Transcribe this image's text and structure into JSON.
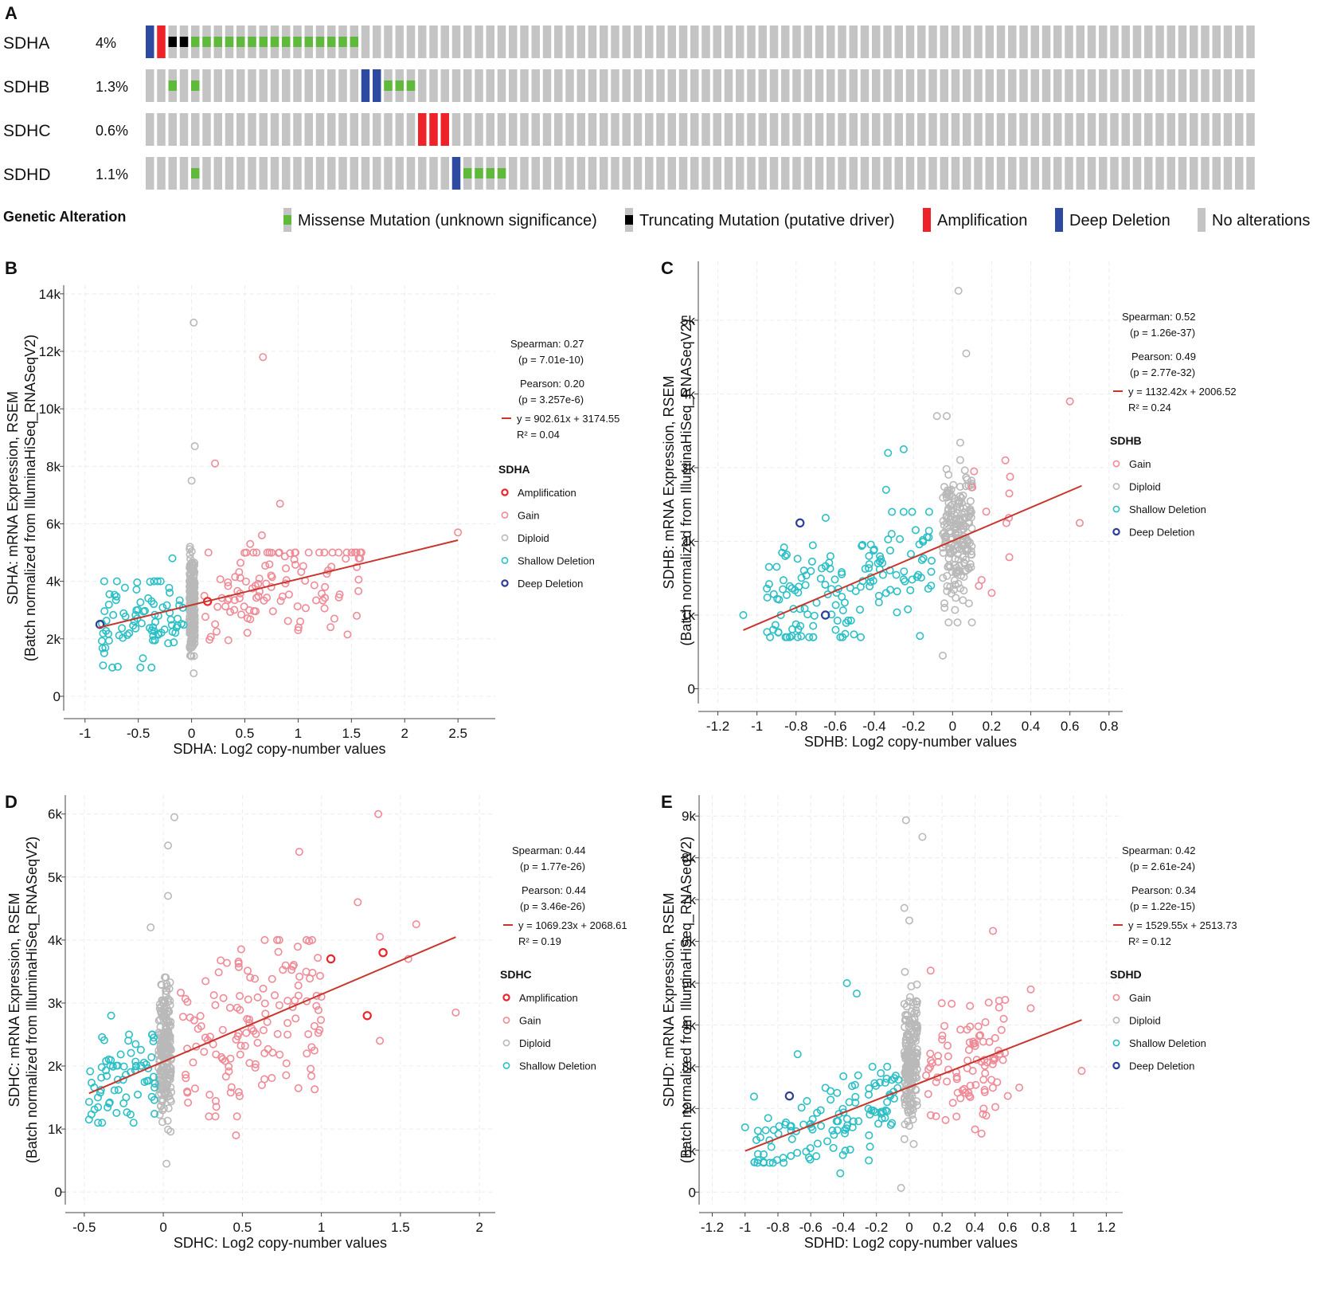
{
  "panel_a": {
    "label": "A",
    "legend_title": "Genetic Alteration",
    "n_samples": 98,
    "genes": [
      {
        "name": "SDHA",
        "pct": "4%",
        "alterations": [
          {
            "i": 0,
            "t": "deep"
          },
          {
            "i": 1,
            "t": "amp"
          },
          {
            "i": 2,
            "t": "trunc"
          },
          {
            "i": 3,
            "t": "trunc"
          },
          {
            "i": 4,
            "t": "mis"
          },
          {
            "i": 5,
            "t": "mis"
          },
          {
            "i": 6,
            "t": "mis"
          },
          {
            "i": 7,
            "t": "mis"
          },
          {
            "i": 8,
            "t": "mis"
          },
          {
            "i": 9,
            "t": "mis"
          },
          {
            "i": 10,
            "t": "mis"
          },
          {
            "i": 11,
            "t": "mis"
          },
          {
            "i": 12,
            "t": "mis"
          },
          {
            "i": 13,
            "t": "mis"
          },
          {
            "i": 14,
            "t": "mis"
          },
          {
            "i": 15,
            "t": "mis"
          },
          {
            "i": 16,
            "t": "mis"
          },
          {
            "i": 17,
            "t": "mis"
          },
          {
            "i": 18,
            "t": "mis"
          }
        ]
      },
      {
        "name": "SDHB",
        "pct": "1.3%",
        "alterations": [
          {
            "i": 2,
            "t": "mis"
          },
          {
            "i": 4,
            "t": "mis"
          },
          {
            "i": 19,
            "t": "deep"
          },
          {
            "i": 20,
            "t": "deep"
          },
          {
            "i": 21,
            "t": "mis"
          },
          {
            "i": 22,
            "t": "mis"
          },
          {
            "i": 23,
            "t": "mis"
          }
        ]
      },
      {
        "name": "SDHC",
        "pct": "0.6%",
        "alterations": [
          {
            "i": 24,
            "t": "amp"
          },
          {
            "i": 25,
            "t": "amp"
          },
          {
            "i": 26,
            "t": "amp"
          }
        ]
      },
      {
        "name": "SDHD",
        "pct": "1.1%",
        "alterations": [
          {
            "i": 4,
            "t": "mis"
          },
          {
            "i": 27,
            "t": "deep"
          },
          {
            "i": 28,
            "t": "mis"
          },
          {
            "i": 29,
            "t": "mis"
          },
          {
            "i": 30,
            "t": "mis"
          },
          {
            "i": 31,
            "t": "mis"
          }
        ]
      }
    ],
    "legend": [
      {
        "key": "mis",
        "label": "Missense Mutation (unknown significance)"
      },
      {
        "key": "trunc",
        "label": "Truncating Mutation (putative driver)"
      },
      {
        "key": "amp",
        "label": "Amplification"
      },
      {
        "key": "deep",
        "label": "Deep Deletion"
      },
      {
        "key": "none",
        "label": "No alterations"
      }
    ],
    "colors": {
      "mis": "#5fba3c",
      "trunc": "#000000",
      "amp": "#ee2229",
      "deep": "#2d4aa0",
      "none": "#c4c4c4"
    }
  },
  "chart_data": [
    {
      "panel": "B",
      "type": "scatter",
      "xlabel": "SDHA: Log2 copy-number values",
      "ylabel": [
        "SDHA: mRNA Expression, RSEM",
        "(Batch normalized from IlluminaHiSeq_RNASeqV2)"
      ],
      "xlim": [
        -1.2,
        2.85
      ],
      "ylim": [
        -500,
        14300
      ],
      "xticks": [
        -1,
        -0.5,
        0,
        0.5,
        1,
        1.5,
        2,
        2.5
      ],
      "xtick_labels": [
        "-1",
        "-0.5",
        "0",
        "0.5",
        "1",
        "1.5",
        "2",
        "2.5"
      ],
      "yticks": [
        0,
        2000,
        4000,
        6000,
        8000,
        10000,
        12000,
        14000
      ],
      "ytick_labels": [
        "0",
        "2k",
        "4k",
        "6k",
        "8k",
        "10k",
        "12k",
        "14k"
      ],
      "stats": [
        "Spearman: 0.27",
        "(p = 7.01e-10)",
        "Pearson: 0.20",
        "(p = 3.257e-6)",
        "y = 902.61x + 3174.55",
        "R² = 0.04"
      ],
      "regression": {
        "slope": 902.61,
        "intercept": 3174.55,
        "x_range": [
          -0.88,
          2.5
        ]
      },
      "legend_title": "SDHA",
      "legend": [
        "Amplification",
        "Gain",
        "Diploid",
        "Shallow Deletion",
        "Deep Deletion"
      ],
      "groups": {
        "Diploid": {
          "color": "#b9b9b9",
          "n": 260,
          "x": [
            -0.02,
            0.03
          ],
          "y": [
            1400,
            5200
          ],
          "sd": 750
        },
        "Gain": {
          "color": "#ef8a97",
          "n": 110,
          "x": [
            0.1,
            1.6
          ],
          "y": [
            1600,
            5000
          ]
        },
        "Shallow Deletion": {
          "color": "#2bbfc6",
          "n": 85,
          "x": [
            -0.85,
            -0.05
          ],
          "y": [
            1000,
            4000
          ]
        }
      },
      "extra_points": [
        {
          "g": "Diploid",
          "x": 0.02,
          "y": 13000
        },
        {
          "g": "Diploid",
          "x": 0.03,
          "y": 8700
        },
        {
          "g": "Diploid",
          "x": 0.0,
          "y": 7500
        },
        {
          "g": "Diploid",
          "x": 0.02,
          "y": 800
        },
        {
          "g": "Gain",
          "x": 0.67,
          "y": 11800
        },
        {
          "g": "Gain",
          "x": 0.22,
          "y": 8100
        },
        {
          "g": "Gain",
          "x": 0.83,
          "y": 6700
        },
        {
          "g": "Gain",
          "x": 2.5,
          "y": 5700
        },
        {
          "g": "Gain",
          "x": 0.66,
          "y": 5600
        },
        {
          "g": "Gain",
          "x": 0.55,
          "y": 5300
        },
        {
          "g": "Gain",
          "x": 1.55,
          "y": 2800
        },
        {
          "g": "Gain",
          "x": 1.34,
          "y": 2700
        },
        {
          "g": "Gain",
          "x": 1.0,
          "y": 2300
        },
        {
          "g": "Gain",
          "x": 1.02,
          "y": 2600
        },
        {
          "g": "Shallow Deletion",
          "x": -0.82,
          "y": 1500
        },
        {
          "g": "Shallow Deletion",
          "x": -0.48,
          "y": 1000
        },
        {
          "g": "Shallow Deletion",
          "x": -0.18,
          "y": 4800
        },
        {
          "g": "Amplification",
          "x": 0.15,
          "y": 3300
        },
        {
          "g": "Deep Deletion",
          "x": -0.86,
          "y": 2500
        }
      ]
    },
    {
      "panel": "C",
      "type": "scatter",
      "xlabel": "SDHB: Log2 copy-number values",
      "ylabel": [
        "SDHB: mRNA Expression, RSEM",
        "(Batch normalized from IlluminaHiSeq_RNASeqV2)"
      ],
      "xlim": [
        -1.3,
        0.87
      ],
      "ylim": [
        -200,
        5800
      ],
      "xticks": [
        -1.2,
        -1,
        -0.8,
        -0.6,
        -0.4,
        -0.2,
        0,
        0.2,
        0.4,
        0.6,
        0.8
      ],
      "xtick_labels": [
        "-1.2",
        "-1",
        "-0.8",
        "-0.6",
        "-0.4",
        "-0.2",
        "0",
        "0.2",
        "0.4",
        "0.6",
        "0.8"
      ],
      "yticks": [
        0,
        1000,
        2000,
        3000,
        4000,
        5000
      ],
      "ytick_labels": [
        "0",
        "1k",
        "2k",
        "3k",
        "4k",
        "5k"
      ],
      "stats": [
        "Spearman: 0.52",
        "(p = 1.26e-37)",
        "Pearson: 0.49",
        "(p = 2.77e-32)",
        "y = 1132.42x + 2006.52",
        "R² = 0.24"
      ],
      "regression": {
        "slope": 1132.42,
        "intercept": 2006.52,
        "x_range": [
          -1.07,
          0.66
        ]
      },
      "legend_title": "SDHB",
      "legend": [
        "Gain",
        "Diploid",
        "Shallow Deletion",
        "Deep Deletion"
      ],
      "groups": {
        "Diploid": {
          "color": "#b9b9b9",
          "n": 200,
          "x": [
            -0.05,
            0.1
          ],
          "y": [
            900,
            3400
          ],
          "sd": 500
        },
        "Gain": {
          "color": "#ef8a97",
          "n": 8,
          "x": [
            0.1,
            0.3
          ],
          "y": [
            1300,
            3000
          ]
        },
        "Shallow Deletion": {
          "color": "#2bbfc6",
          "n": 150,
          "x": [
            -0.95,
            -0.1
          ],
          "y": [
            700,
            2400
          ]
        }
      },
      "extra_points": [
        {
          "g": "Diploid",
          "x": 0.03,
          "y": 5400
        },
        {
          "g": "Diploid",
          "x": 0.07,
          "y": 4550
        },
        {
          "g": "Diploid",
          "x": -0.03,
          "y": 3700
        },
        {
          "g": "Diploid",
          "x": -0.08,
          "y": 3700
        },
        {
          "g": "Diploid",
          "x": -0.05,
          "y": 450
        },
        {
          "g": "Gain",
          "x": 0.6,
          "y": 3900
        },
        {
          "g": "Gain",
          "x": 0.27,
          "y": 3100
        },
        {
          "g": "Gain",
          "x": 0.65,
          "y": 2250
        },
        {
          "g": "Gain",
          "x": 0.29,
          "y": 2650
        },
        {
          "g": "Gain",
          "x": 0.11,
          "y": 2950
        },
        {
          "g": "Gain",
          "x": 0.2,
          "y": 1300
        },
        {
          "g": "Shallow Deletion",
          "x": -1.07,
          "y": 1000
        },
        {
          "g": "Shallow Deletion",
          "x": -0.33,
          "y": 3200
        },
        {
          "g": "Shallow Deletion",
          "x": -0.25,
          "y": 3250
        },
        {
          "g": "Shallow Deletion",
          "x": -0.34,
          "y": 2700
        },
        {
          "g": "Deep Deletion",
          "x": -0.78,
          "y": 2250
        },
        {
          "g": "Deep Deletion",
          "x": -0.65,
          "y": 1000
        }
      ]
    },
    {
      "panel": "D",
      "type": "scatter",
      "xlabel": "SDHC: Log2 copy-number values",
      "ylabel": [
        "SDHC: mRNA Expression, RSEM",
        "(Batch normalized from IlluminaHiSeq_RNASeqV2)"
      ],
      "xlim": [
        -0.62,
        2.1
      ],
      "ylim": [
        -200,
        6300
      ],
      "xticks": [
        -0.5,
        0,
        0.5,
        1,
        1.5,
        2
      ],
      "xtick_labels": [
        "-0.5",
        "0",
        "0.5",
        "1",
        "1.5",
        "2"
      ],
      "yticks": [
        0,
        1000,
        2000,
        3000,
        4000,
        5000,
        6000
      ],
      "ytick_labels": [
        "0",
        "1k",
        "2k",
        "3k",
        "4k",
        "5k",
        "6k"
      ],
      "stats": [
        "Spearman: 0.44",
        "(p = 1.77e-26)",
        "Pearson: 0.44",
        "(p = 3.46e-26)",
        "y = 1069.23x + 2068.61",
        "R² = 0.19"
      ],
      "regression": {
        "slope": 1069.23,
        "intercept": 2068.61,
        "x_range": [
          -0.47,
          1.85
        ]
      },
      "legend_title": "SDHC",
      "legend": [
        "Amplification",
        "Gain",
        "Diploid",
        "Shallow Deletion"
      ],
      "groups": {
        "Diploid": {
          "color": "#b9b9b9",
          "n": 210,
          "x": [
            -0.03,
            0.05
          ],
          "y": [
            900,
            3600
          ],
          "sd": 550
        },
        "Gain": {
          "color": "#ef8a97",
          "n": 140,
          "x": [
            0.1,
            1.0
          ],
          "y": [
            1200,
            4000
          ]
        },
        "Shallow Deletion": {
          "color": "#2bbfc6",
          "n": 70,
          "x": [
            -0.47,
            -0.05
          ],
          "y": [
            1100,
            2500
          ]
        }
      },
      "extra_points": [
        {
          "g": "Diploid",
          "x": 0.07,
          "y": 5950
        },
        {
          "g": "Diploid",
          "x": 0.03,
          "y": 5500
        },
        {
          "g": "Diploid",
          "x": 0.03,
          "y": 4700
        },
        {
          "g": "Diploid",
          "x": -0.08,
          "y": 4200
        },
        {
          "g": "Diploid",
          "x": 0.02,
          "y": 450
        },
        {
          "g": "Gain",
          "x": 1.36,
          "y": 6000
        },
        {
          "g": "Gain",
          "x": 0.86,
          "y": 5400
        },
        {
          "g": "Gain",
          "x": 1.23,
          "y": 4600
        },
        {
          "g": "Gain",
          "x": 1.6,
          "y": 4250
        },
        {
          "g": "Gain",
          "x": 1.37,
          "y": 4050
        },
        {
          "g": "Gain",
          "x": 1.55,
          "y": 3700
        },
        {
          "g": "Gain",
          "x": 1.85,
          "y": 2850
        },
        {
          "g": "Gain",
          "x": 1.37,
          "y": 2400
        },
        {
          "g": "Gain",
          "x": 0.46,
          "y": 900
        },
        {
          "g": "Gain",
          "x": 1.0,
          "y": 3100
        },
        {
          "g": "Shallow Deletion",
          "x": -0.33,
          "y": 2800
        },
        {
          "g": "Shallow Deletion",
          "x": -0.47,
          "y": 1150
        },
        {
          "g": "Amplification",
          "x": 1.06,
          "y": 3700
        },
        {
          "g": "Amplification",
          "x": 1.39,
          "y": 3800
        },
        {
          "g": "Amplification",
          "x": 1.29,
          "y": 2800
        }
      ]
    },
    {
      "panel": "E",
      "type": "scatter",
      "xlabel": "SDHD: Log2 copy-number values",
      "ylabel": [
        "SDHD: mRNA Expression, RSEM",
        "(Batch normalized from IlluminaHiSeq_RNASeqV2)"
      ],
      "xlim": [
        -1.28,
        1.3
      ],
      "ylim": [
        -300,
        9500
      ],
      "xticks": [
        -1.2,
        -1,
        -0.8,
        -0.6,
        -0.4,
        -0.2,
        0,
        0.2,
        0.4,
        0.6,
        0.8,
        1,
        1.2
      ],
      "xtick_labels": [
        "-1.2",
        "-1",
        "-0.8",
        "-0.6",
        "-0.4",
        "-0.2",
        "0",
        "0.2",
        "0.4",
        "0.6",
        "0.8",
        "1",
        "1.2"
      ],
      "yticks": [
        0,
        1000,
        2000,
        3000,
        4000,
        5000,
        6000,
        7000,
        8000,
        9000
      ],
      "ytick_labels": [
        "0",
        "1k",
        "2k",
        "3k",
        "4k",
        "5k",
        "6k",
        "7k",
        "8k",
        "9k"
      ],
      "stats": [
        "Spearman: 0.42",
        "(p = 2.61e-24)",
        "Pearson: 0.34",
        "(p = 1.22e-15)",
        "y = 1529.55x + 2513.73",
        "R² = 0.12"
      ],
      "regression": {
        "slope": 1529.55,
        "intercept": 2513.73,
        "x_range": [
          -1.0,
          1.05
        ]
      },
      "legend_title": "SDHD",
      "legend": [
        "Gain",
        "Diploid",
        "Shallow Deletion",
        "Deep Deletion"
      ],
      "groups": {
        "Diploid": {
          "color": "#b9b9b9",
          "n": 200,
          "x": [
            -0.03,
            0.05
          ],
          "y": [
            800,
            5600
          ],
          "sd": 800
        },
        "Gain": {
          "color": "#ef8a97",
          "n": 90,
          "x": [
            0.1,
            0.6
          ],
          "y": [
            1500,
            4600
          ]
        },
        "Shallow Deletion": {
          "color": "#2bbfc6",
          "n": 120,
          "x": [
            -0.95,
            -0.05
          ],
          "y": [
            700,
            3000
          ]
        }
      },
      "extra_points": [
        {
          "g": "Diploid",
          "x": -0.02,
          "y": 8900
        },
        {
          "g": "Diploid",
          "x": 0.08,
          "y": 8500
        },
        {
          "g": "Diploid",
          "x": -0.03,
          "y": 6800
        },
        {
          "g": "Diploid",
          "x": 0.0,
          "y": 6500
        },
        {
          "g": "Diploid",
          "x": -0.05,
          "y": 100
        },
        {
          "g": "Gain",
          "x": 0.51,
          "y": 6250
        },
        {
          "g": "Gain",
          "x": 0.74,
          "y": 4850
        },
        {
          "g": "Gain",
          "x": 0.74,
          "y": 4400
        },
        {
          "g": "Gain",
          "x": 1.05,
          "y": 2900
        },
        {
          "g": "Gain",
          "x": 0.67,
          "y": 2500
        },
        {
          "g": "Gain",
          "x": 0.44,
          "y": 1400
        },
        {
          "g": "Gain",
          "x": 0.13,
          "y": 5300
        },
        {
          "g": "Gain",
          "x": 0.6,
          "y": 2300
        },
        {
          "g": "Shallow Deletion",
          "x": -1.0,
          "y": 1550
        },
        {
          "g": "Shallow Deletion",
          "x": -0.38,
          "y": 5000
        },
        {
          "g": "Shallow Deletion",
          "x": -0.32,
          "y": 4750
        },
        {
          "g": "Shallow Deletion",
          "x": -0.68,
          "y": 3300
        },
        {
          "g": "Shallow Deletion",
          "x": -0.42,
          "y": 450
        },
        {
          "g": "Deep Deletion",
          "x": -0.73,
          "y": 2300
        }
      ]
    }
  ],
  "group_colors": {
    "Amplification": "#e8262b",
    "Gain": "#ef8a97",
    "Diploid": "#b9b9b9",
    "Shallow Deletion": "#2bbfc6",
    "Deep Deletion": "#2d3f99"
  }
}
